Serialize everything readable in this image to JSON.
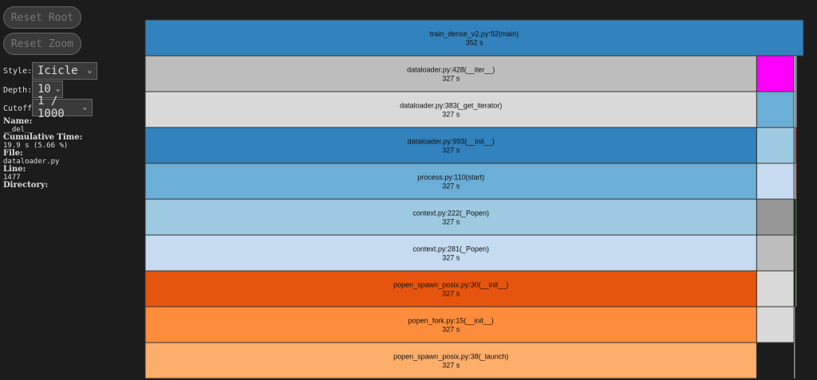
{
  "controls": {
    "reset_root": "Reset Root",
    "reset_zoom": "Reset Zoom",
    "style_label": "Style:",
    "style_value": "Icicle",
    "depth_label": "Depth:",
    "depth_value": "10",
    "cutoff_label": "Cutoff:",
    "cutoff_value": "1 / 1000"
  },
  "info": {
    "name_label": "Name:",
    "name": "__del__",
    "cumtime_label": "Cumulative Time:",
    "cumtime": "19.9 s (5.66 %)",
    "file_label": "File:",
    "file": "dataloader.py",
    "line_label": "Line:",
    "line": "1477",
    "directory_label": "Directory:"
  },
  "total_s": 352,
  "nodes": [
    {
      "depth": 0,
      "start": 0,
      "time": 352,
      "label": "train_dense_v2.py:92(main)",
      "time_label": "352 s",
      "color": "#3182bd"
    },
    {
      "depth": 1,
      "start": 0,
      "time": 327,
      "label": "dataloader.py:428(__iter__)",
      "time_label": "327 s",
      "color": "#bdbdbd"
    },
    {
      "depth": 2,
      "start": 0,
      "time": 327,
      "label": "dataloader.py:383(_get_iterator)",
      "time_label": "327 s",
      "color": "#d9d9d9"
    },
    {
      "depth": 3,
      "start": 0,
      "time": 327,
      "label": "dataloader.py:993(__init__)",
      "time_label": "327 s",
      "color": "#3182bd"
    },
    {
      "depth": 4,
      "start": 0,
      "time": 327,
      "label": "process.py:110(start)",
      "time_label": "327 s",
      "color": "#6baed6"
    },
    {
      "depth": 5,
      "start": 0,
      "time": 327,
      "label": "context.py:222(_Popen)",
      "time_label": "327 s",
      "color": "#9ecae1"
    },
    {
      "depth": 6,
      "start": 0,
      "time": 327,
      "label": "context.py:281(_Popen)",
      "time_label": "327 s",
      "color": "#c6dbef"
    },
    {
      "depth": 7,
      "start": 0,
      "time": 327,
      "label": "popen_spawn_posix.py:30(__init__)",
      "time_label": "327 s",
      "color": "#e6550d"
    },
    {
      "depth": 8,
      "start": 0,
      "time": 327,
      "label": "popen_fork.py:15(__init__)",
      "time_label": "327 s",
      "color": "#fd8d3c"
    },
    {
      "depth": 9,
      "start": 0,
      "time": 327,
      "label": "popen_spawn_posix.py:38(_launch)",
      "time_label": "327 s",
      "color": "#fdae6b"
    },
    {
      "depth": 1,
      "start": 327,
      "time": 19.9,
      "color": "#ff00ff"
    },
    {
      "depth": 2,
      "start": 327,
      "time": 19.9,
      "color": "#6baed6"
    },
    {
      "depth": 3,
      "start": 327,
      "time": 19.9,
      "color": "#9ecae1"
    },
    {
      "depth": 4,
      "start": 327,
      "time": 19.9,
      "color": "#c6dbef"
    },
    {
      "depth": 5,
      "start": 327,
      "time": 19.9,
      "color": "#969696"
    },
    {
      "depth": 6,
      "start": 327,
      "time": 19.9,
      "color": "#bdbdbd"
    },
    {
      "depth": 7,
      "start": 327,
      "time": 19.9,
      "color": "#d9d9d9"
    },
    {
      "depth": 8,
      "start": 327,
      "time": 19.9,
      "color": "#d9d9d9"
    },
    {
      "depth": 1,
      "start": 347,
      "time": 0.7,
      "color": "#c7e9c0"
    },
    {
      "depth": 1,
      "start": 347.8,
      "time": 0.7,
      "color": "#9e9ac8"
    },
    {
      "depth": 2,
      "start": 347,
      "time": 0.7,
      "color": "#c7e9c0"
    },
    {
      "depth": 2,
      "start": 347.8,
      "time": 0.7,
      "color": "#9e9ac8"
    },
    {
      "depth": 3,
      "start": 347,
      "time": 0.7,
      "color": "#9e9ac8"
    },
    {
      "depth": 3,
      "start": 347.8,
      "time": 0.5,
      "color": "#e6550d"
    },
    {
      "depth": 4,
      "start": 347,
      "time": 0.7,
      "color": "#bcbddc"
    },
    {
      "depth": 4,
      "start": 347.8,
      "time": 0.5,
      "color": "#fdae6b"
    },
    {
      "depth": 5,
      "start": 347.8,
      "time": 0.5,
      "color": "#31a354"
    },
    {
      "depth": 6,
      "start": 347.8,
      "time": 0.5,
      "color": "#74c476"
    },
    {
      "depth": 7,
      "start": 347.8,
      "time": 0.5,
      "color": "#a1d99b"
    },
    {
      "depth": 8,
      "start": 347,
      "time": 0.5,
      "color": "#bdbdbd"
    },
    {
      "depth": 9,
      "start": 347,
      "time": 0.5,
      "color": "#d9d9d9"
    }
  ]
}
